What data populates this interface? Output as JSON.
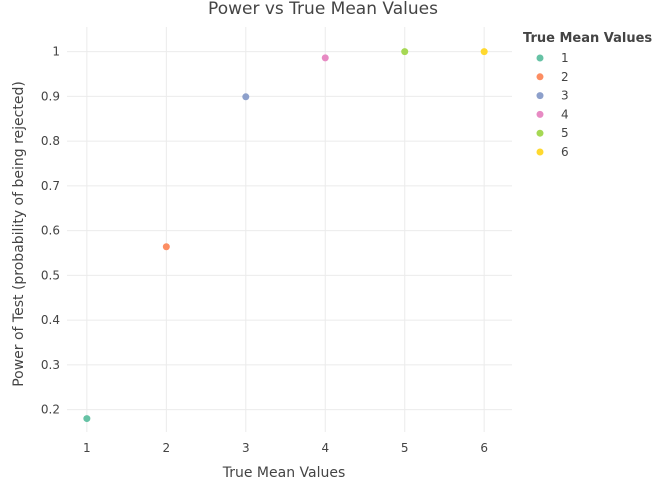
{
  "chart_data": {
    "type": "scatter",
    "title": "Power vs True Mean Values",
    "xlabel": "True Mean Values",
    "ylabel": "Power of Test (probability of being rejected)",
    "xlim": [
      0.75,
      6.35
    ],
    "ylim": [
      0.15,
      1.055
    ],
    "x_ticks": [
      "1",
      "2",
      "3",
      "4",
      "5",
      "6"
    ],
    "x_tick_values": [
      1,
      2,
      3,
      4,
      5,
      6
    ],
    "y_ticks": [
      "0.2",
      "0.3",
      "0.4",
      "0.5",
      "0.6",
      "0.7",
      "0.8",
      "0.9",
      "1"
    ],
    "y_tick_values": [
      0.2,
      0.3,
      0.4,
      0.5,
      0.6,
      0.7,
      0.8,
      0.9,
      1.0
    ],
    "grid": true,
    "legend": {
      "title": "True Mean Values",
      "placement": "top-right"
    },
    "series": [
      {
        "name": "1",
        "x": [
          1
        ],
        "y": [
          0.18
        ],
        "color": "#66c2a5"
      },
      {
        "name": "2",
        "x": [
          2
        ],
        "y": [
          0.564
        ],
        "color": "#fc8d62"
      },
      {
        "name": "3",
        "x": [
          3
        ],
        "y": [
          0.899
        ],
        "color": "#8da0cb"
      },
      {
        "name": "4",
        "x": [
          4
        ],
        "y": [
          0.986
        ],
        "color": "#e78ac3"
      },
      {
        "name": "5",
        "x": [
          5
        ],
        "y": [
          1.0
        ],
        "color": "#a6d854"
      },
      {
        "name": "6",
        "x": [
          6
        ],
        "y": [
          1.0
        ],
        "color": "#ffd92f"
      }
    ]
  }
}
